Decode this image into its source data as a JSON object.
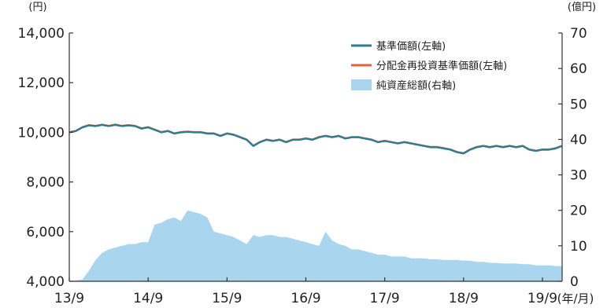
{
  "chart_data": {
    "type": "line",
    "title": "",
    "y_left_unit": "(円)",
    "y_right_unit": "(億円)",
    "x_unit": "(年/月)",
    "ylim_left": [
      4000,
      14000
    ],
    "ylim_right": [
      0,
      70
    ],
    "xlim": [
      "2013-09",
      "2019-12"
    ],
    "x_ticks": [
      "13/9",
      "14/9",
      "15/9",
      "16/9",
      "17/9",
      "18/9",
      "19/9"
    ],
    "y_left_ticks": [
      "14,000",
      "12,000",
      "10,000",
      "8,000",
      "6,000",
      "4,000"
    ],
    "y_right_ticks": [
      "70",
      "60",
      "50",
      "40",
      "30",
      "20",
      "10",
      "0"
    ],
    "legend_position": "top-right",
    "colors": {
      "nav": "#2e7c8f",
      "reinvested_nav": "#e8603c",
      "net_assets": "#a9d5ef"
    },
    "series": [
      {
        "name": "基準価額(左軸)",
        "axis": "left",
        "style": "line",
        "points": [
          [
            "2013-09",
            10000
          ],
          [
            "2013-10",
            10050
          ],
          [
            "2013-11",
            10200
          ],
          [
            "2013-12",
            10280
          ],
          [
            "2014-01",
            10250
          ],
          [
            "2014-02",
            10300
          ],
          [
            "2014-03",
            10250
          ],
          [
            "2014-04",
            10300
          ],
          [
            "2014-05",
            10250
          ],
          [
            "2014-06",
            10280
          ],
          [
            "2014-07",
            10250
          ],
          [
            "2014-08",
            10150
          ],
          [
            "2014-09",
            10200
          ],
          [
            "2014-10",
            10100
          ],
          [
            "2014-11",
            10000
          ],
          [
            "2014-12",
            10050
          ],
          [
            "2015-01",
            9950
          ],
          [
            "2015-02",
            10000
          ],
          [
            "2015-03",
            10020
          ],
          [
            "2015-04",
            10000
          ],
          [
            "2015-05",
            10000
          ],
          [
            "2015-06",
            9950
          ],
          [
            "2015-07",
            9950
          ],
          [
            "2015-08",
            9850
          ],
          [
            "2015-09",
            9950
          ],
          [
            "2015-10",
            9900
          ],
          [
            "2015-11",
            9800
          ],
          [
            "2015-12",
            9700
          ],
          [
            "2016-01",
            9450
          ],
          [
            "2016-02",
            9600
          ],
          [
            "2016-03",
            9700
          ],
          [
            "2016-04",
            9650
          ],
          [
            "2016-05",
            9700
          ],
          [
            "2016-06",
            9600
          ],
          [
            "2016-07",
            9700
          ],
          [
            "2016-08",
            9700
          ],
          [
            "2016-09",
            9750
          ],
          [
            "2016-10",
            9700
          ],
          [
            "2016-11",
            9800
          ],
          [
            "2016-12",
            9850
          ],
          [
            "2017-01",
            9800
          ],
          [
            "2017-02",
            9850
          ],
          [
            "2017-03",
            9750
          ],
          [
            "2017-04",
            9800
          ],
          [
            "2017-05",
            9800
          ],
          [
            "2017-06",
            9750
          ],
          [
            "2017-07",
            9700
          ],
          [
            "2017-08",
            9600
          ],
          [
            "2017-09",
            9650
          ],
          [
            "2017-10",
            9600
          ],
          [
            "2017-11",
            9550
          ],
          [
            "2017-12",
            9600
          ],
          [
            "2018-01",
            9550
          ],
          [
            "2018-02",
            9500
          ],
          [
            "2018-03",
            9450
          ],
          [
            "2018-04",
            9400
          ],
          [
            "2018-05",
            9400
          ],
          [
            "2018-06",
            9350
          ],
          [
            "2018-07",
            9300
          ],
          [
            "2018-08",
            9200
          ],
          [
            "2018-09",
            9150
          ],
          [
            "2018-10",
            9300
          ],
          [
            "2018-11",
            9400
          ],
          [
            "2018-12",
            9450
          ],
          [
            "2019-01",
            9400
          ],
          [
            "2019-02",
            9450
          ],
          [
            "2019-03",
            9400
          ],
          [
            "2019-04",
            9450
          ],
          [
            "2019-05",
            9400
          ],
          [
            "2019-06",
            9450
          ],
          [
            "2019-07",
            9300
          ],
          [
            "2019-08",
            9250
          ],
          [
            "2019-09",
            9300
          ],
          [
            "2019-10",
            9300
          ],
          [
            "2019-11",
            9350
          ],
          [
            "2019-12",
            9450
          ]
        ]
      },
      {
        "name": "分配金再投資基準価額(左軸)",
        "axis": "left",
        "style": "line",
        "points": [
          [
            "2013-09",
            10000
          ],
          [
            "2013-10",
            10060
          ],
          [
            "2013-11",
            10210
          ],
          [
            "2013-12",
            10290
          ],
          [
            "2014-01",
            10260
          ],
          [
            "2014-02",
            10310
          ],
          [
            "2014-03",
            10260
          ],
          [
            "2014-04",
            10310
          ],
          [
            "2014-05",
            10260
          ],
          [
            "2014-06",
            10290
          ],
          [
            "2014-07",
            10260
          ],
          [
            "2014-08",
            10160
          ],
          [
            "2014-09",
            10210
          ],
          [
            "2014-10",
            10110
          ],
          [
            "2014-11",
            10010
          ],
          [
            "2014-12",
            10060
          ],
          [
            "2015-01",
            9960
          ],
          [
            "2015-02",
            10010
          ],
          [
            "2015-03",
            10030
          ],
          [
            "2015-04",
            10010
          ],
          [
            "2015-05",
            10010
          ],
          [
            "2015-06",
            9960
          ],
          [
            "2015-07",
            9960
          ],
          [
            "2015-08",
            9860
          ],
          [
            "2015-09",
            9960
          ],
          [
            "2015-10",
            9910
          ],
          [
            "2015-11",
            9810
          ],
          [
            "2015-12",
            9710
          ],
          [
            "2016-01",
            9460
          ],
          [
            "2016-02",
            9610
          ],
          [
            "2016-03",
            9710
          ],
          [
            "2016-04",
            9660
          ],
          [
            "2016-05",
            9710
          ],
          [
            "2016-06",
            9610
          ],
          [
            "2016-07",
            9710
          ],
          [
            "2016-08",
            9710
          ],
          [
            "2016-09",
            9760
          ],
          [
            "2016-10",
            9710
          ],
          [
            "2016-11",
            9810
          ],
          [
            "2016-12",
            9860
          ],
          [
            "2017-01",
            9810
          ],
          [
            "2017-02",
            9860
          ],
          [
            "2017-03",
            9760
          ],
          [
            "2017-04",
            9810
          ],
          [
            "2017-05",
            9810
          ],
          [
            "2017-06",
            9760
          ],
          [
            "2017-07",
            9710
          ],
          [
            "2017-08",
            9610
          ],
          [
            "2017-09",
            9660
          ],
          [
            "2017-10",
            9610
          ],
          [
            "2017-11",
            9560
          ],
          [
            "2017-12",
            9610
          ],
          [
            "2018-01",
            9560
          ],
          [
            "2018-02",
            9510
          ],
          [
            "2018-03",
            9460
          ],
          [
            "2018-04",
            9410
          ],
          [
            "2018-05",
            9410
          ],
          [
            "2018-06",
            9360
          ],
          [
            "2018-07",
            9310
          ],
          [
            "2018-08",
            9210
          ],
          [
            "2018-09",
            9160
          ],
          [
            "2018-10",
            9310
          ],
          [
            "2018-11",
            9410
          ],
          [
            "2018-12",
            9460
          ],
          [
            "2019-01",
            9410
          ],
          [
            "2019-02",
            9460
          ],
          [
            "2019-03",
            9410
          ],
          [
            "2019-04",
            9460
          ],
          [
            "2019-05",
            9410
          ],
          [
            "2019-06",
            9460
          ],
          [
            "2019-07",
            9310
          ],
          [
            "2019-08",
            9260
          ],
          [
            "2019-09",
            9310
          ],
          [
            "2019-10",
            9310
          ],
          [
            "2019-11",
            9360
          ],
          [
            "2019-12",
            9460
          ]
        ]
      },
      {
        "name": "純資産総額(右軸)",
        "axis": "right",
        "style": "area",
        "points": [
          [
            "2013-09",
            0
          ],
          [
            "2013-11",
            0.5
          ],
          [
            "2013-12",
            3
          ],
          [
            "2014-01",
            6
          ],
          [
            "2014-02",
            8
          ],
          [
            "2014-03",
            9
          ],
          [
            "2014-04",
            9.5
          ],
          [
            "2014-05",
            10
          ],
          [
            "2014-06",
            10.5
          ],
          [
            "2014-07",
            10.5
          ],
          [
            "2014-08",
            11
          ],
          [
            "2014-09",
            11
          ],
          [
            "2014-10",
            16
          ],
          [
            "2014-11",
            16.5
          ],
          [
            "2014-12",
            17.5
          ],
          [
            "2015-01",
            18
          ],
          [
            "2015-02",
            17
          ],
          [
            "2015-03",
            20
          ],
          [
            "2015-04",
            19.5
          ],
          [
            "2015-05",
            19
          ],
          [
            "2015-06",
            18
          ],
          [
            "2015-07",
            14
          ],
          [
            "2015-08",
            13.5
          ],
          [
            "2015-09",
            13
          ],
          [
            "2015-10",
            12.5
          ],
          [
            "2015-11",
            11.5
          ],
          [
            "2015-12",
            10.5
          ],
          [
            "2016-01",
            13
          ],
          [
            "2016-02",
            12.5
          ],
          [
            "2016-03",
            13
          ],
          [
            "2016-04",
            13
          ],
          [
            "2016-05",
            12.5
          ],
          [
            "2016-06",
            12.5
          ],
          [
            "2016-07",
            12
          ],
          [
            "2016-08",
            11.5
          ],
          [
            "2016-09",
            11
          ],
          [
            "2016-10",
            10.5
          ],
          [
            "2016-11",
            10
          ],
          [
            "2016-12",
            14
          ],
          [
            "2017-01",
            11.5
          ],
          [
            "2017-02",
            10.5
          ],
          [
            "2017-03",
            10
          ],
          [
            "2017-04",
            9
          ],
          [
            "2017-05",
            9
          ],
          [
            "2017-06",
            8.5
          ],
          [
            "2017-07",
            8
          ],
          [
            "2017-08",
            7.5
          ],
          [
            "2017-09",
            7.5
          ],
          [
            "2017-10",
            7
          ],
          [
            "2017-11",
            7
          ],
          [
            "2017-12",
            7
          ],
          [
            "2018-01",
            6.5
          ],
          [
            "2018-02",
            6.5
          ],
          [
            "2018-03",
            6.5
          ],
          [
            "2018-04",
            6.2
          ],
          [
            "2018-05",
            6.2
          ],
          [
            "2018-06",
            6
          ],
          [
            "2018-07",
            6
          ],
          [
            "2018-08",
            6
          ],
          [
            "2018-09",
            5.8
          ],
          [
            "2018-10",
            5.8
          ],
          [
            "2018-11",
            5.5
          ],
          [
            "2018-12",
            5.5
          ],
          [
            "2019-01",
            5.2
          ],
          [
            "2019-02",
            5.2
          ],
          [
            "2019-03",
            5
          ],
          [
            "2019-04",
            5
          ],
          [
            "2019-05",
            5
          ],
          [
            "2019-06",
            4.8
          ],
          [
            "2019-07",
            4.8
          ],
          [
            "2019-08",
            4.5
          ],
          [
            "2019-09",
            4.5
          ],
          [
            "2019-10",
            4.5
          ],
          [
            "2019-11",
            4.3
          ],
          [
            "2019-12",
            4.3
          ]
        ]
      }
    ]
  }
}
